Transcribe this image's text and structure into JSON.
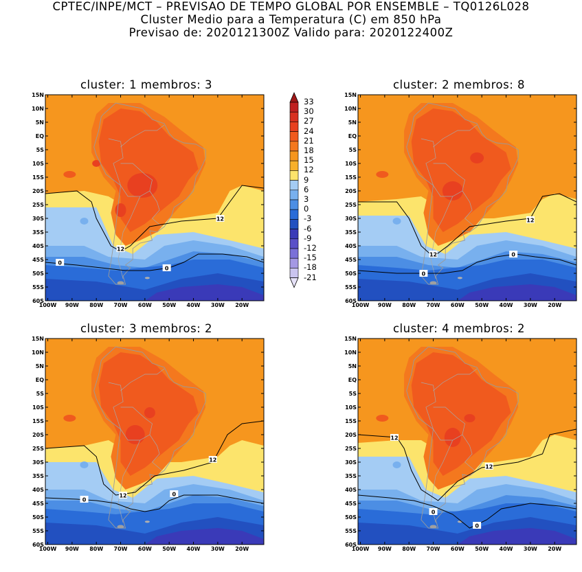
{
  "header": {
    "line1": "CPTEC/INPE/MCT – PREVISAO DE TEMPO GLOBAL POR ENSEMBLE – TQ0126L028",
    "line2": "Cluster Medio para a Temperatura (C) em 850 hPa",
    "line3": "Previsao de: 2020121300Z   Valido para: 2020122400Z"
  },
  "axes": {
    "lat_labels": [
      "15N",
      "10N",
      "5N",
      "EQ",
      "5S",
      "10S",
      "15S",
      "20S",
      "25S",
      "30S",
      "35S",
      "40S",
      "45S",
      "50S",
      "55S",
      "60S"
    ],
    "lon_labels": [
      "100W",
      "90W",
      "80W",
      "70W",
      "60W",
      "50W",
      "40W",
      "30W",
      "20W"
    ]
  },
  "colorbar": {
    "levels": [
      "33",
      "30",
      "27",
      "24",
      "21",
      "18",
      "15",
      "12",
      "9",
      "6",
      "3",
      "0",
      "-3",
      "-6",
      "-9",
      "-12",
      "-15",
      "-18",
      "-21"
    ],
    "colors": [
      "#a01818",
      "#c02020",
      "#d83020",
      "#e84020",
      "#f05a1e",
      "#f4781e",
      "#f6961e",
      "#f8b02a",
      "#fce46c",
      "#a4ccf4",
      "#78b0ee",
      "#4c8ee4",
      "#2a6cd8",
      "#2250c0",
      "#3a3ab8",
      "#5a50c8",
      "#7a70d8",
      "#a498e4",
      "#cac4f0",
      "#e6e2f8"
    ]
  },
  "panels": [
    {
      "title": "cluster: 1   membros: 3",
      "contour_labels": [
        "12",
        "12",
        "0",
        "0"
      ]
    },
    {
      "title": "cluster: 2   membros: 8",
      "contour_labels": [
        "12",
        "12",
        "0",
        "0"
      ]
    },
    {
      "title": "cluster: 3   membros: 2",
      "contour_labels": [
        "12",
        "12",
        "0",
        "0"
      ]
    },
    {
      "title": "cluster: 4   membros: 2",
      "contour_labels": [
        "12",
        "12",
        "0",
        "0"
      ]
    }
  ]
}
